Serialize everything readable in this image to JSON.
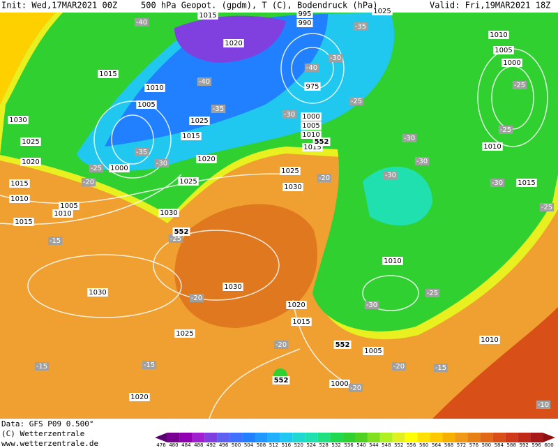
{
  "header": {
    "init": "Init: Wed,17MAR2021 00Z",
    "fields": "500 hPa Geopot. (gpdm), T (C), Bodendruck (hPa)",
    "valid": "Valid: Fri,19MAR2021 18Z"
  },
  "footer": {
    "data": "Data: GFS P09 0.500°",
    "copyright": "(C) Wetterzentrale",
    "url": "www.wetterzentrale.de"
  },
  "isobar_labels": [
    1015,
    1020,
    995,
    990,
    975,
    1025,
    1010,
    1005,
    1000,
    1015,
    1010,
    1005,
    1025,
    1000,
    1005,
    1010,
    1015,
    1015,
    1030,
    1025,
    1020,
    1000,
    1020,
    1025,
    1025,
    1030,
    1015,
    1010,
    1005,
    1010,
    1015,
    1030,
    1010,
    1015,
    1010,
    1030,
    1030,
    1020,
    1015,
    1025,
    1010,
    1005,
    1000,
    1020
  ],
  "temperature_labels": [
    -40,
    -35,
    -30,
    -40,
    -40,
    -35,
    -30,
    -35,
    -30,
    -25,
    -20,
    -25,
    -30,
    -30,
    -30,
    -20,
    -25,
    -15,
    -30,
    -25,
    -25,
    -25,
    -20,
    -30,
    -25,
    -20,
    -20,
    -15,
    -15,
    -15,
    -20,
    -10
  ],
  "height_labels": [
    552,
    552,
    552,
    552
  ],
  "colorbar": {
    "values": [
      476,
      480,
      484,
      488,
      492,
      496,
      500,
      504,
      508,
      512,
      516,
      520,
      524,
      528,
      532,
      536,
      540,
      544,
      548,
      552,
      556,
      560,
      564,
      568,
      572,
      576,
      580,
      584,
      588,
      592,
      596,
      600
    ],
    "colors": [
      "#5a0070",
      "#780090",
      "#9000b0",
      "#a020d0",
      "#8040e0",
      "#6060f0",
      "#4070ff",
      "#2080ff",
      "#2098ff",
      "#20b0ff",
      "#20c8f0",
      "#20d8d0",
      "#20e0b0",
      "#20e080",
      "#20d850",
      "#30d030",
      "#50d020",
      "#80e020",
      "#b0f020",
      "#e0f020",
      "#ffff00",
      "#ffe000",
      "#ffc800",
      "#f8b000",
      "#f09818",
      "#e88018",
      "#e06818",
      "#d85018",
      "#d03818",
      "#c02818",
      "#a81818",
      "#901010"
    ]
  }
}
